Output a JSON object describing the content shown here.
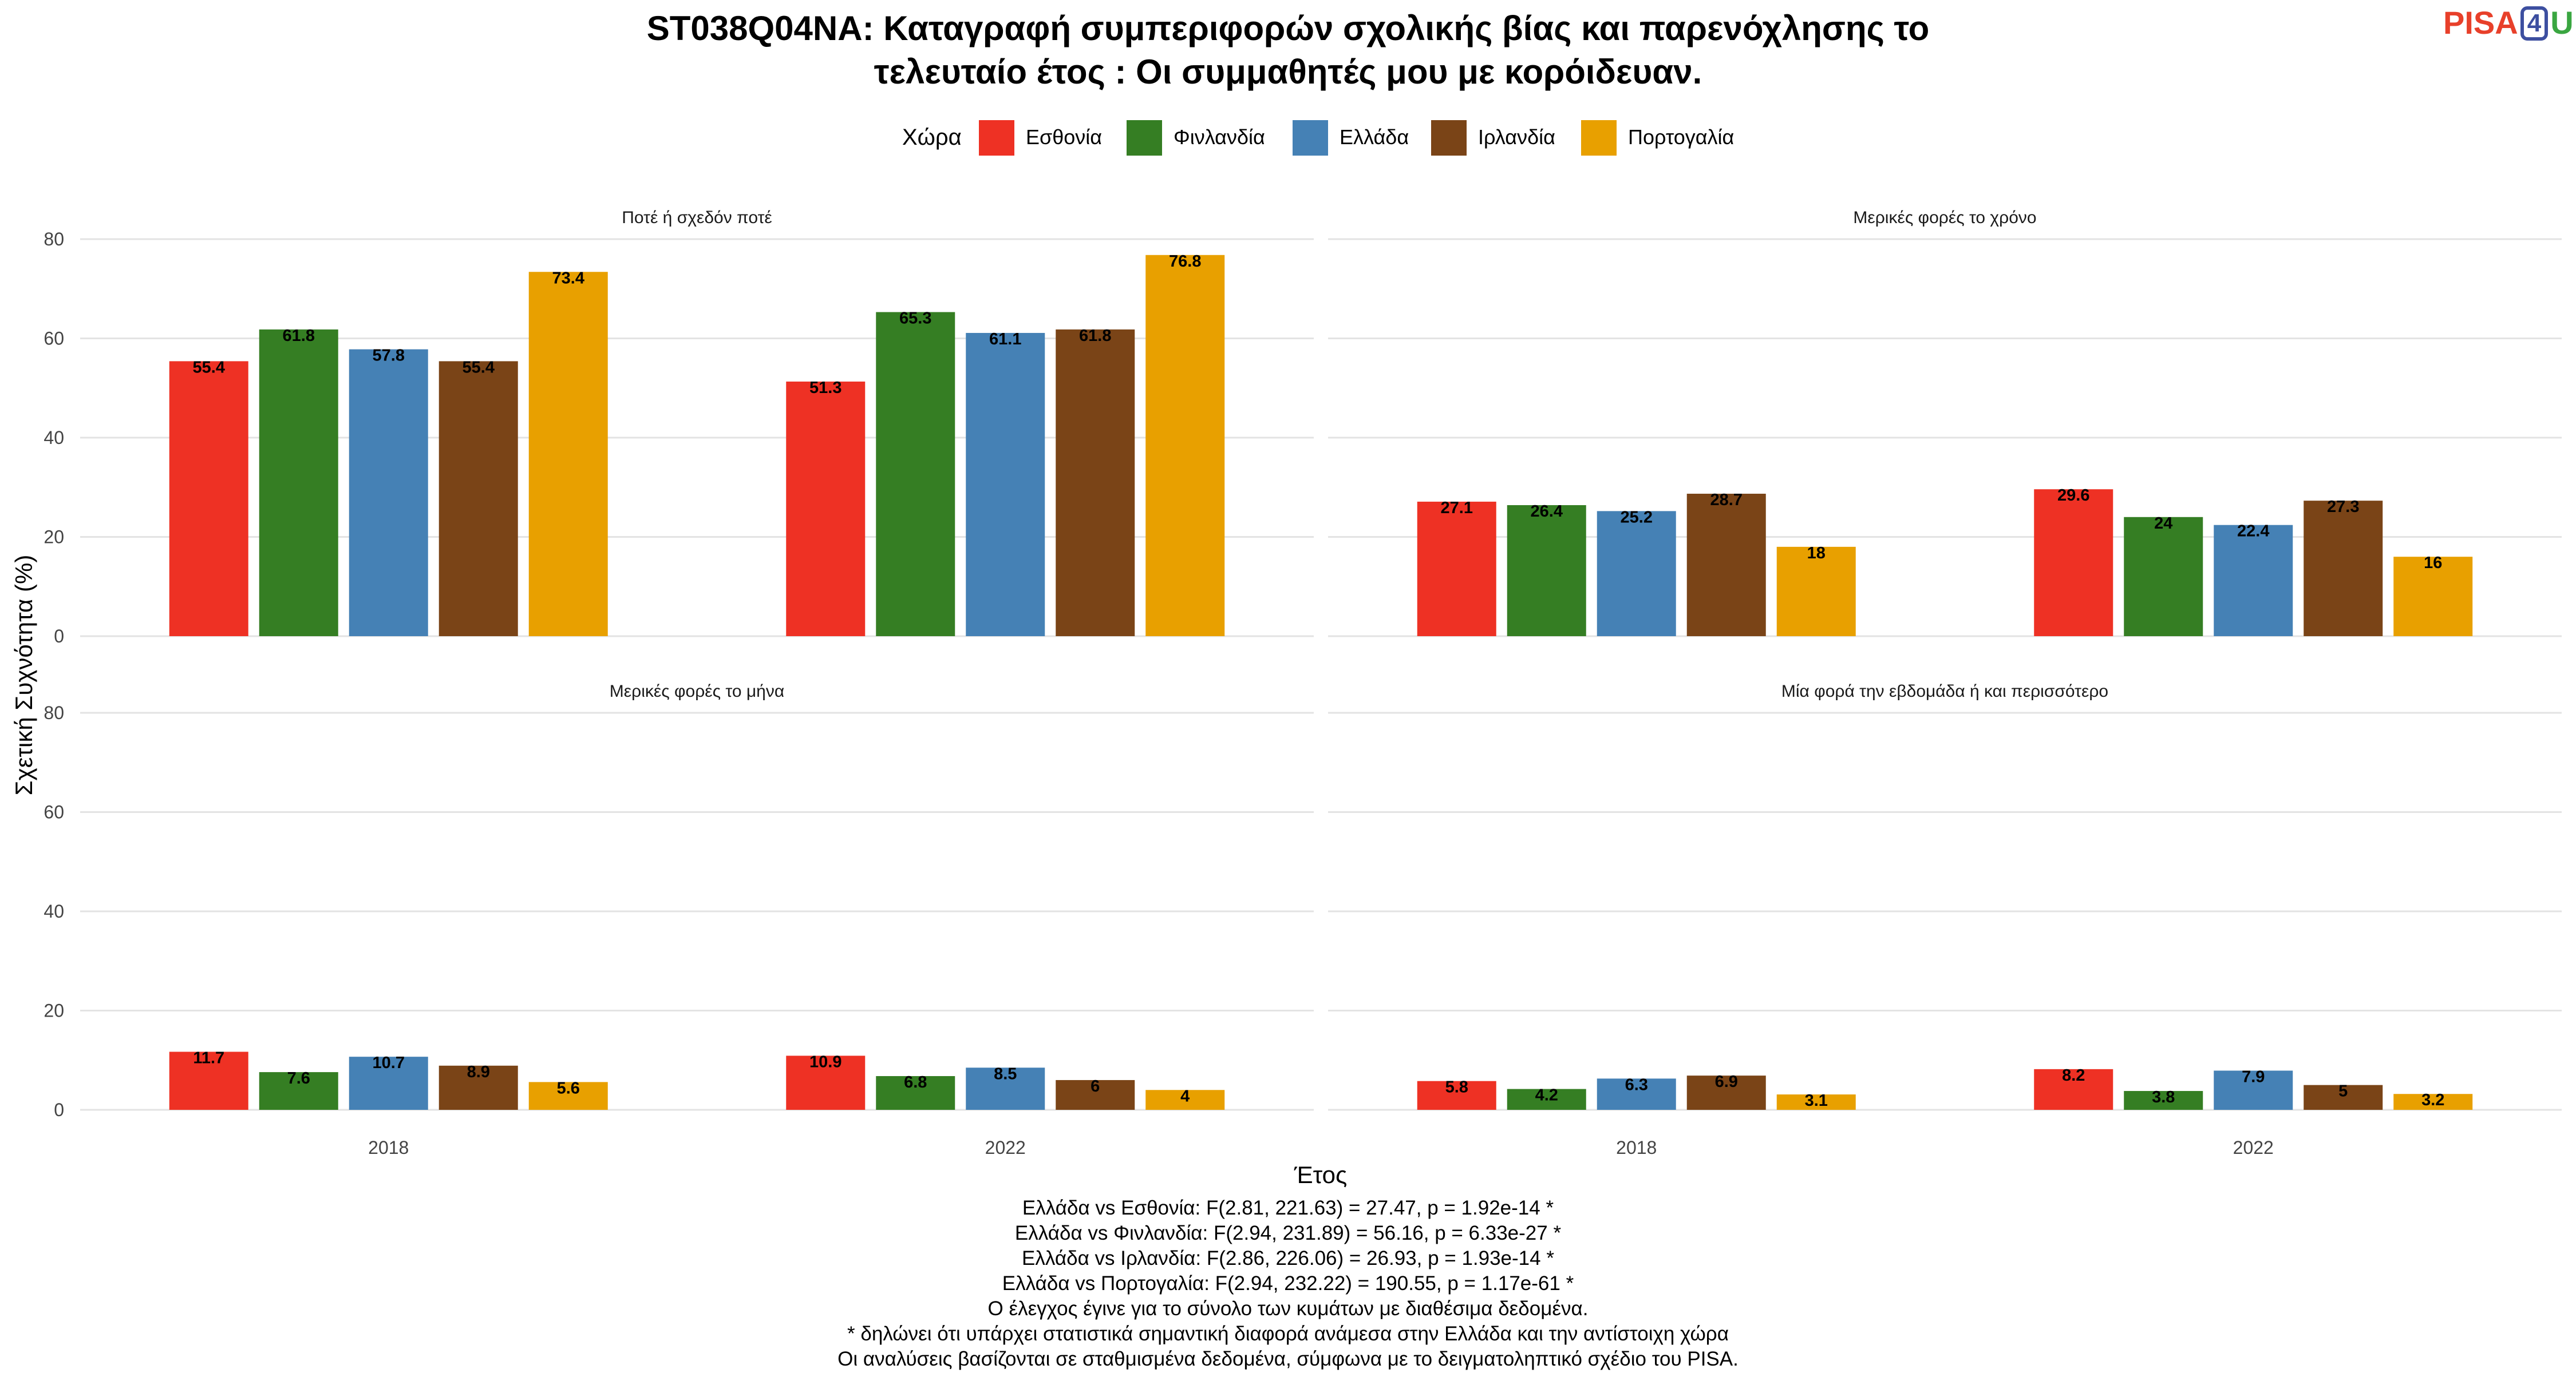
{
  "header": {
    "title_line1": "ST038Q04NA: Καταγραφή συμπεριφορών σχολικής βίας και παρενόχλησης το",
    "title_line2": "τελευταίο έτος : Οι συμμαθητές μου με κορόιδευαν.",
    "logo_pisa": "PISA",
    "logo_four": "4",
    "logo_u": "U"
  },
  "legend": {
    "title": "Χώρα",
    "items": [
      {
        "label": "Εσθονία",
        "color": "#ee3124"
      },
      {
        "label": "Φινλανδία",
        "color": "#357e23"
      },
      {
        "label": "Ελλάδα",
        "color": "#4581b5"
      },
      {
        "label": "Ιρλανδία",
        "color": "#7a4417"
      },
      {
        "label": "Πορτογαλία",
        "color": "#e8a000"
      }
    ]
  },
  "chart_data": {
    "type": "bar",
    "xlabel": "Έτος",
    "ylabel": "Σχετική Συχνότητα (%)",
    "ylim": [
      0,
      80
    ],
    "yticks": [
      0,
      20,
      40,
      60,
      80
    ],
    "grid": true,
    "legend_position": "top",
    "categories": [
      "2018",
      "2022"
    ],
    "series_names": [
      "Εσθονία",
      "Φινλανδία",
      "Ελλάδα",
      "Ιρλανδία",
      "Πορτογαλία"
    ],
    "colors": [
      "#ee3124",
      "#357e23",
      "#4581b5",
      "#7a4417",
      "#e8a000"
    ],
    "panels": [
      {
        "title": "Ποτέ ή σχεδόν ποτέ",
        "values": [
          [
            55.4,
            61.8,
            57.8,
            55.4,
            73.4
          ],
          [
            51.3,
            65.3,
            61.1,
            61.8,
            76.8
          ]
        ]
      },
      {
        "title": "Μερικές φορές το χρόνο",
        "values": [
          [
            27.1,
            26.4,
            25.2,
            28.7,
            18
          ],
          [
            29.6,
            24,
            22.4,
            27.3,
            16
          ]
        ]
      },
      {
        "title": "Μερικές φορές το μήνα",
        "values": [
          [
            11.7,
            7.6,
            10.7,
            8.9,
            5.6
          ],
          [
            10.9,
            6.8,
            8.5,
            6,
            4
          ]
        ]
      },
      {
        "title": "Μία φορά την εβδομάδα ή και περισσότερο",
        "values": [
          [
            5.8,
            4.2,
            6.3,
            6.9,
            3.1
          ],
          [
            8.2,
            3.8,
            7.9,
            5,
            3.2
          ]
        ]
      }
    ]
  },
  "notes": [
    "Ελλάδα vs Εσθονία: F(2.81, 221.63) = 27.47, p = 1.92e-14 *",
    "Ελλάδα vs Φινλανδία: F(2.94, 231.89) = 56.16, p = 6.33e-27 *",
    "Ελλάδα vs Ιρλανδία: F(2.86, 226.06) = 26.93, p = 1.93e-14 *",
    "Ελλάδα vs Πορτογαλία: F(2.94, 232.22) = 190.55, p = 1.17e-61 *",
    "Ο έλεγχος έγινε για το σύνολο των κυμάτων με διαθέσιμα δεδομένα.",
    "* δηλώνει ότι υπάρχει στατιστικά σημαντική διαφορά ανάμεσα στην Ελλάδα και την αντίστοιχη χώρα",
    "Οι αναλύσεις βασίζονται σε σταθμισμένα δεδομένα, σύμφωνα με το δειγματοληπτικό σχέδιο του PISA."
  ]
}
